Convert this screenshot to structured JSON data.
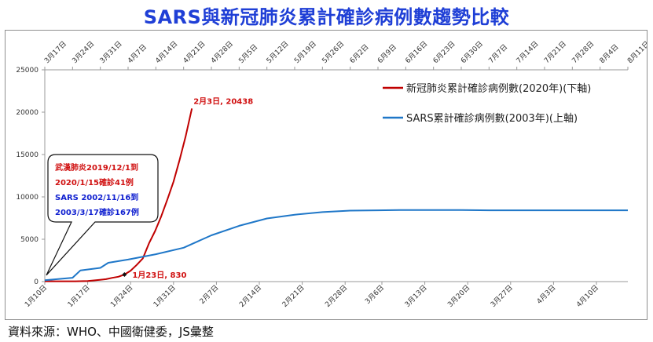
{
  "title": "SARS與新冠肺炎累計確診病例數趨勢比較",
  "source_note": "資料來源：WHO、中國衛健委，JS彙整",
  "chart_data": {
    "type": "line",
    "ylim": [
      0,
      25000
    ],
    "yticks": [
      "0",
      "5000",
      "10000",
      "15000",
      "20000",
      "25000"
    ],
    "grid": false,
    "legend_placement": "top-right",
    "colors": {
      "covid": "#c00000",
      "sars": "#1f77c8",
      "axis": "#9a9a9a",
      "callout_red": "#d01010",
      "callout_blue": "#1020d0"
    },
    "x_bottom_ticks": [
      "1月10日",
      "1月17日",
      "1月24日",
      "1月31日",
      "2月7日",
      "2月14日",
      "2月21日",
      "2月28日",
      "3月6日",
      "3月13日",
      "3月20日",
      "3月27日",
      "4月3日",
      "4月10日"
    ],
    "x_top_ticks": [
      "3月17日",
      "3月24日",
      "3月31日",
      "4月7日",
      "4月14日",
      "4月21日",
      "4月28日",
      "5月5日",
      "5月12日",
      "5月19日",
      "5月26日",
      "6月2日",
      "6月9日",
      "6月16日",
      "6月23日",
      "6月30日",
      "7月7日",
      "7月14日",
      "7月21日",
      "7月28日",
      "8月4日",
      "8月11日"
    ],
    "series": [
      {
        "name": "新冠肺炎累計確診病例數(2020年)(下軸)",
        "axis": "bottom",
        "x": [
          "1月10日",
          "1月15日",
          "1月17日",
          "1月19日",
          "1月20日",
          "1月21日",
          "1月22日",
          "1月23日",
          "1月24日",
          "1月25日",
          "1月26日",
          "1月27日",
          "1月28日",
          "1月29日",
          "1月30日",
          "1月31日",
          "2月1日",
          "2月2日",
          "2月3日"
        ],
        "values": [
          41,
          41,
          62,
          201,
          291,
          440,
          571,
          830,
          1287,
          1975,
          2744,
          4515,
          5974,
          7711,
          9692,
          11791,
          14380,
          17205,
          20438
        ]
      },
      {
        "name": "SARS累計確診病例數(2003年)(上軸)",
        "axis": "top",
        "x": [
          "3月17日",
          "3月24日",
          "3月26日",
          "3月31日",
          "4月2日",
          "4月7日",
          "4月14日",
          "4月21日",
          "4月28日",
          "5月5日",
          "5月12日",
          "5月19日",
          "5月26日",
          "6月2日",
          "6月9日",
          "6月16日",
          "6月23日",
          "6月30日",
          "7月7日",
          "7月14日",
          "7月21日",
          "7月28日",
          "8月4日",
          "8月11日"
        ],
        "values": [
          167,
          450,
          1320,
          1620,
          2220,
          2600,
          3230,
          4000,
          5460,
          6580,
          7450,
          7900,
          8200,
          8380,
          8420,
          8450,
          8450,
          8440,
          8420,
          8420,
          8420,
          8420,
          8420,
          8420
        ]
      }
    ],
    "annotations": [
      {
        "text": "2月3日, 20438",
        "series": 0,
        "x": "2月3日",
        "y": 20438
      },
      {
        "text": "1月23日, 830",
        "series": 0,
        "x": "1月23日",
        "y": 830
      }
    ],
    "callout": {
      "lines": [
        "武漢肺炎2019/12/1到",
        "2020/1/15確診41例",
        "SARS 2002/11/16到",
        "2003/3/17確診167例"
      ],
      "anchor": {
        "x": "1月10日",
        "y": 200
      }
    }
  }
}
